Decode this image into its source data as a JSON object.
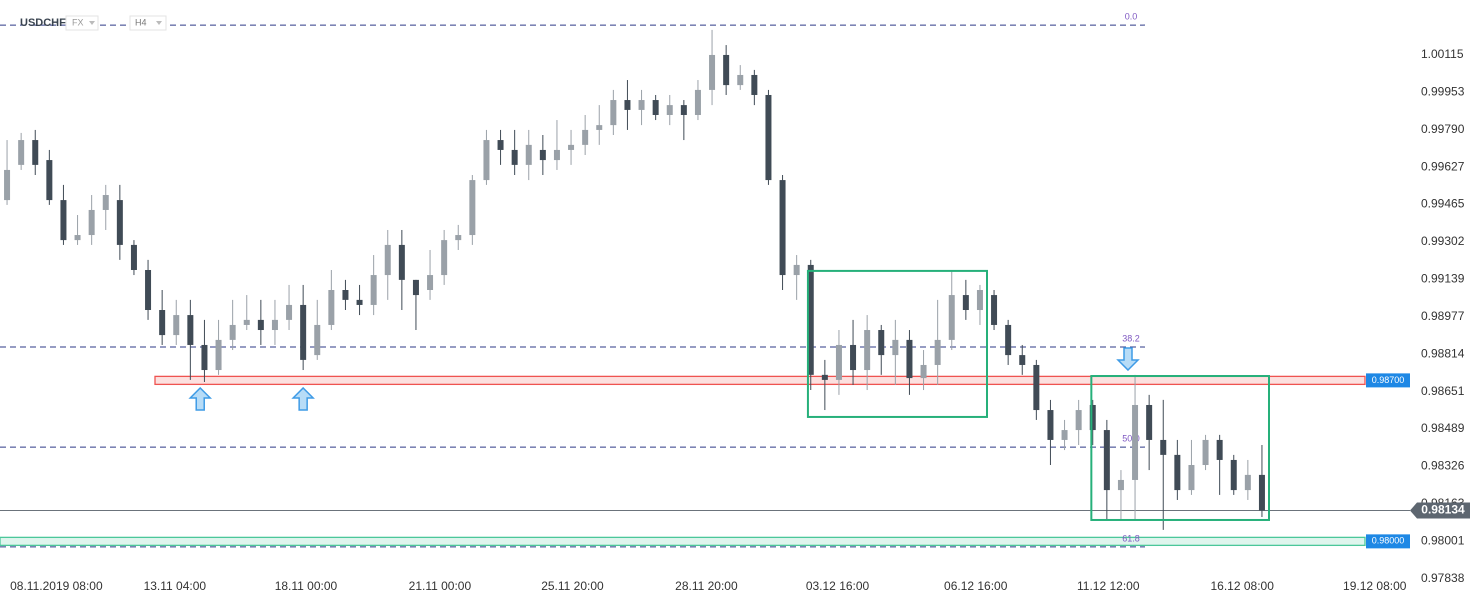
{
  "chart_data": {
    "type": "candlestick",
    "symbol": "USDCHF",
    "market": "FX",
    "timeframe": "H4",
    "open": [
      0.99484,
      0.99637,
      0.99745,
      0.99658,
      0.99484,
      0.9931,
      0.99332,
      0.99441,
      0.99484,
      0.99289,
      0.9918,
      0.99006,
      0.98897,
      0.98984,
      0.98854,
      0.98745,
      0.98876,
      0.98941,
      0.98963,
      0.98919,
      0.98963,
      0.99028,
      0.9881,
      0.98941,
      0.99093,
      0.9905,
      0.99028,
      0.99158,
      0.99289,
      0.99137,
      0.99093,
      0.99158,
      0.9931,
      0.99332,
      0.99571,
      0.99745,
      0.99702,
      0.99637,
      0.99702,
      0.99658,
      0.99702,
      0.99724,
      0.99789,
      0.9981,
      0.99919,
      0.99876,
      0.99919,
      0.99854,
      0.99897,
      0.99854,
      0.99963,
      1.00115,
      0.99984,
      1.00028,
      0.99941,
      0.99571,
      0.99158,
      0.99202,
      0.98724,
      0.98702,
      0.98854,
      0.98745,
      0.98919,
      0.9881,
      0.98876,
      0.9871,
      0.98767,
      0.98876,
      0.99071,
      0.99006,
      0.99071,
      0.98941,
      0.9881,
      0.98767,
      0.98571,
      0.98441,
      0.98484,
      0.98593,
      0.98484,
      0.98223,
      0.98267,
      0.98593,
      0.98441,
      0.98376,
      0.98223,
      0.98332,
      0.98441,
      0.98354,
      0.98223,
      0.98289
    ],
    "high": [
      0.99745,
      0.99776,
      0.99789,
      0.99702,
      0.9955,
      0.99419,
      0.99506,
      0.9955,
      0.9955,
      0.9931,
      0.99224,
      0.99093,
      0.9905,
      0.9905,
      0.98963,
      0.98963,
      0.9905,
      0.99071,
      0.9905,
      0.9905,
      0.99115,
      0.99115,
      0.9905,
      0.9918,
      0.99137,
      0.99115,
      0.99245,
      0.99354,
      0.99354,
      0.99137,
      0.99267,
      0.99354,
      0.99376,
      0.99593,
      0.99789,
      0.99789,
      0.99789,
      0.99789,
      0.99767,
      0.99832,
      0.99789,
      0.99854,
      0.99897,
      0.99963,
      1.00006,
      0.99963,
      0.99941,
      0.99941,
      0.99919,
      1.00006,
      1.00224,
      1.00158,
      1.00071,
      1.0005,
      0.99963,
      0.99593,
      0.99245,
      0.99224,
      0.98789,
      0.98919,
      0.98963,
      0.98984,
      0.98941,
      0.98963,
      0.98919,
      0.98832,
      0.9905,
      0.9918,
      0.99137,
      0.99115,
      0.99093,
      0.98963,
      0.98854,
      0.98789,
      0.98615,
      0.98528,
      0.98615,
      0.98615,
      0.98528,
      0.9831,
      0.98724,
      0.98637,
      0.98615,
      0.98441,
      0.98441,
      0.98463,
      0.98463,
      0.98376,
      0.98354,
      0.98419
    ],
    "low": [
      0.99463,
      0.99615,
      0.99593,
      0.99463,
      0.99289,
      0.99289,
      0.99289,
      0.99354,
      0.99224,
      0.99158,
      0.98963,
      0.98854,
      0.98854,
      0.98702,
      0.98693,
      0.98724,
      0.98832,
      0.98919,
      0.98854,
      0.98854,
      0.98919,
      0.98745,
      0.98789,
      0.98919,
      0.99006,
      0.98984,
      0.98984,
      0.9905,
      0.99006,
      0.98919,
      0.9905,
      0.99115,
      0.99267,
      0.99289,
      0.9955,
      0.99637,
      0.99593,
      0.99571,
      0.99593,
      0.99615,
      0.99637,
      0.9968,
      0.99724,
      0.99767,
      0.99789,
      0.9981,
      0.99832,
      0.9981,
      0.99745,
      0.99832,
      0.99897,
      0.99941,
      0.99963,
      0.99897,
      0.9955,
      0.99093,
      0.9905,
      0.98658,
      0.98571,
      0.98637,
      0.9868,
      0.98658,
      0.98724,
      0.9868,
      0.98637,
      0.98658,
      0.9868,
      0.98832,
      0.98963,
      0.98941,
      0.98919,
      0.98767,
      0.98724,
      0.98528,
      0.98332,
      0.98397,
      0.98419,
      0.98419,
      0.98093,
      0.98093,
      0.98093,
      0.9831,
      0.9805,
      0.9818,
      0.98202,
      0.9831,
      0.98202,
      0.98202,
      0.9818,
      0.98106
    ],
    "close": [
      0.99615,
      0.99745,
      0.99637,
      0.99484,
      0.9931,
      0.99332,
      0.99441,
      0.99506,
      0.99289,
      0.9918,
      0.99006,
      0.98897,
      0.98984,
      0.98854,
      0.98745,
      0.98876,
      0.98941,
      0.98963,
      0.98919,
      0.98963,
      0.99028,
      0.98789,
      0.98941,
      0.99093,
      0.9905,
      0.99028,
      0.99158,
      0.99289,
      0.99137,
      0.99071,
      0.99158,
      0.9931,
      0.99332,
      0.99571,
      0.99745,
      0.99702,
      0.99637,
      0.99724,
      0.99658,
      0.99702,
      0.99724,
      0.99789,
      0.9981,
      0.99919,
      0.99876,
      0.99919,
      0.99854,
      0.99897,
      0.99854,
      0.99963,
      1.00115,
      0.99984,
      1.00028,
      0.99941,
      0.99571,
      0.99158,
      0.99202,
      0.98724,
      0.98702,
      0.98854,
      0.98745,
      0.98919,
      0.9881,
      0.98876,
      0.9871,
      0.98767,
      0.98876,
      0.99071,
      0.99006,
      0.99093,
      0.98941,
      0.9881,
      0.98767,
      0.98571,
      0.98441,
      0.98484,
      0.98571,
      0.98484,
      0.98223,
      0.98267,
      0.98593,
      0.98441,
      0.98376,
      0.98223,
      0.98332,
      0.98441,
      0.98354,
      0.98223,
      0.98289,
      0.98134
    ],
    "colors": {
      "up": "#9aa1a8",
      "down": "#404b56"
    },
    "xlim": [
      -0.5,
      99.5
    ],
    "xticks": [
      {
        "value": 3.5,
        "label": "08.11.2019 08:00"
      },
      {
        "value": 11.9,
        "label": "13.11 04:00"
      },
      {
        "value": 21.2,
        "label": "18.11 00:00"
      },
      {
        "value": 30.7,
        "label": "21.11 00:00"
      },
      {
        "value": 40.1,
        "label": "25.11 20:00"
      },
      {
        "value": 49.6,
        "label": "28.11 20:00"
      },
      {
        "value": 58.9,
        "label": "03.12 16:00"
      },
      {
        "value": 68.7,
        "label": "06.12 16:00"
      },
      {
        "value": 78.1,
        "label": "11.12 12:00"
      },
      {
        "value": 87.6,
        "label": "16.12 08:00"
      },
      {
        "value": 97,
        "label": "19.12 08:00"
      }
    ],
    "ylim": [
      0.97832,
      1.00354
    ],
    "yticks": [
      1.00115,
      0.99953,
      {
        "value": 0.9979,
        "label": "0.99790"
      },
      0.99627,
      0.99465,
      0.99302,
      0.99139,
      0.98977,
      0.98814,
      0.98651,
      0.98489,
      0.98326,
      0.98163,
      0.98001,
      0.97838
    ],
    "fib_levels": [
      {
        "label": "0.0",
        "value": 1.00245
      },
      {
        "label": "38.2",
        "value": 0.98845
      },
      {
        "label": "50.0",
        "value": 0.9841
      },
      {
        "label": "61.8",
        "value": 0.97976
      }
    ],
    "fib_color": "#2e3a87",
    "zones": [
      {
        "value": 0.987,
        "label": "0.98700",
        "color": "#ef5350"
      },
      {
        "value": 0.98,
        "label": "0.98000",
        "color": "#4cc79a"
      }
    ],
    "last_price": {
      "value": 0.98134,
      "label": "0.98134"
    },
    "boxes": [
      {
        "x": [
          56.8,
          69.5
        ],
        "y": [
          0.98541,
          0.99176
        ]
      },
      {
        "x": [
          76.9,
          89.5
        ],
        "y": [
          0.98093,
          0.98719
        ]
      }
    ],
    "box_color": "#26b07a",
    "arrows": [
      {
        "x": 13.7,
        "y": 0.98667,
        "direction": "up"
      },
      {
        "x": 21,
        "y": 0.98667,
        "direction": "up"
      },
      {
        "x": 79.5,
        "y": 0.98745,
        "direction": "down"
      }
    ]
  }
}
